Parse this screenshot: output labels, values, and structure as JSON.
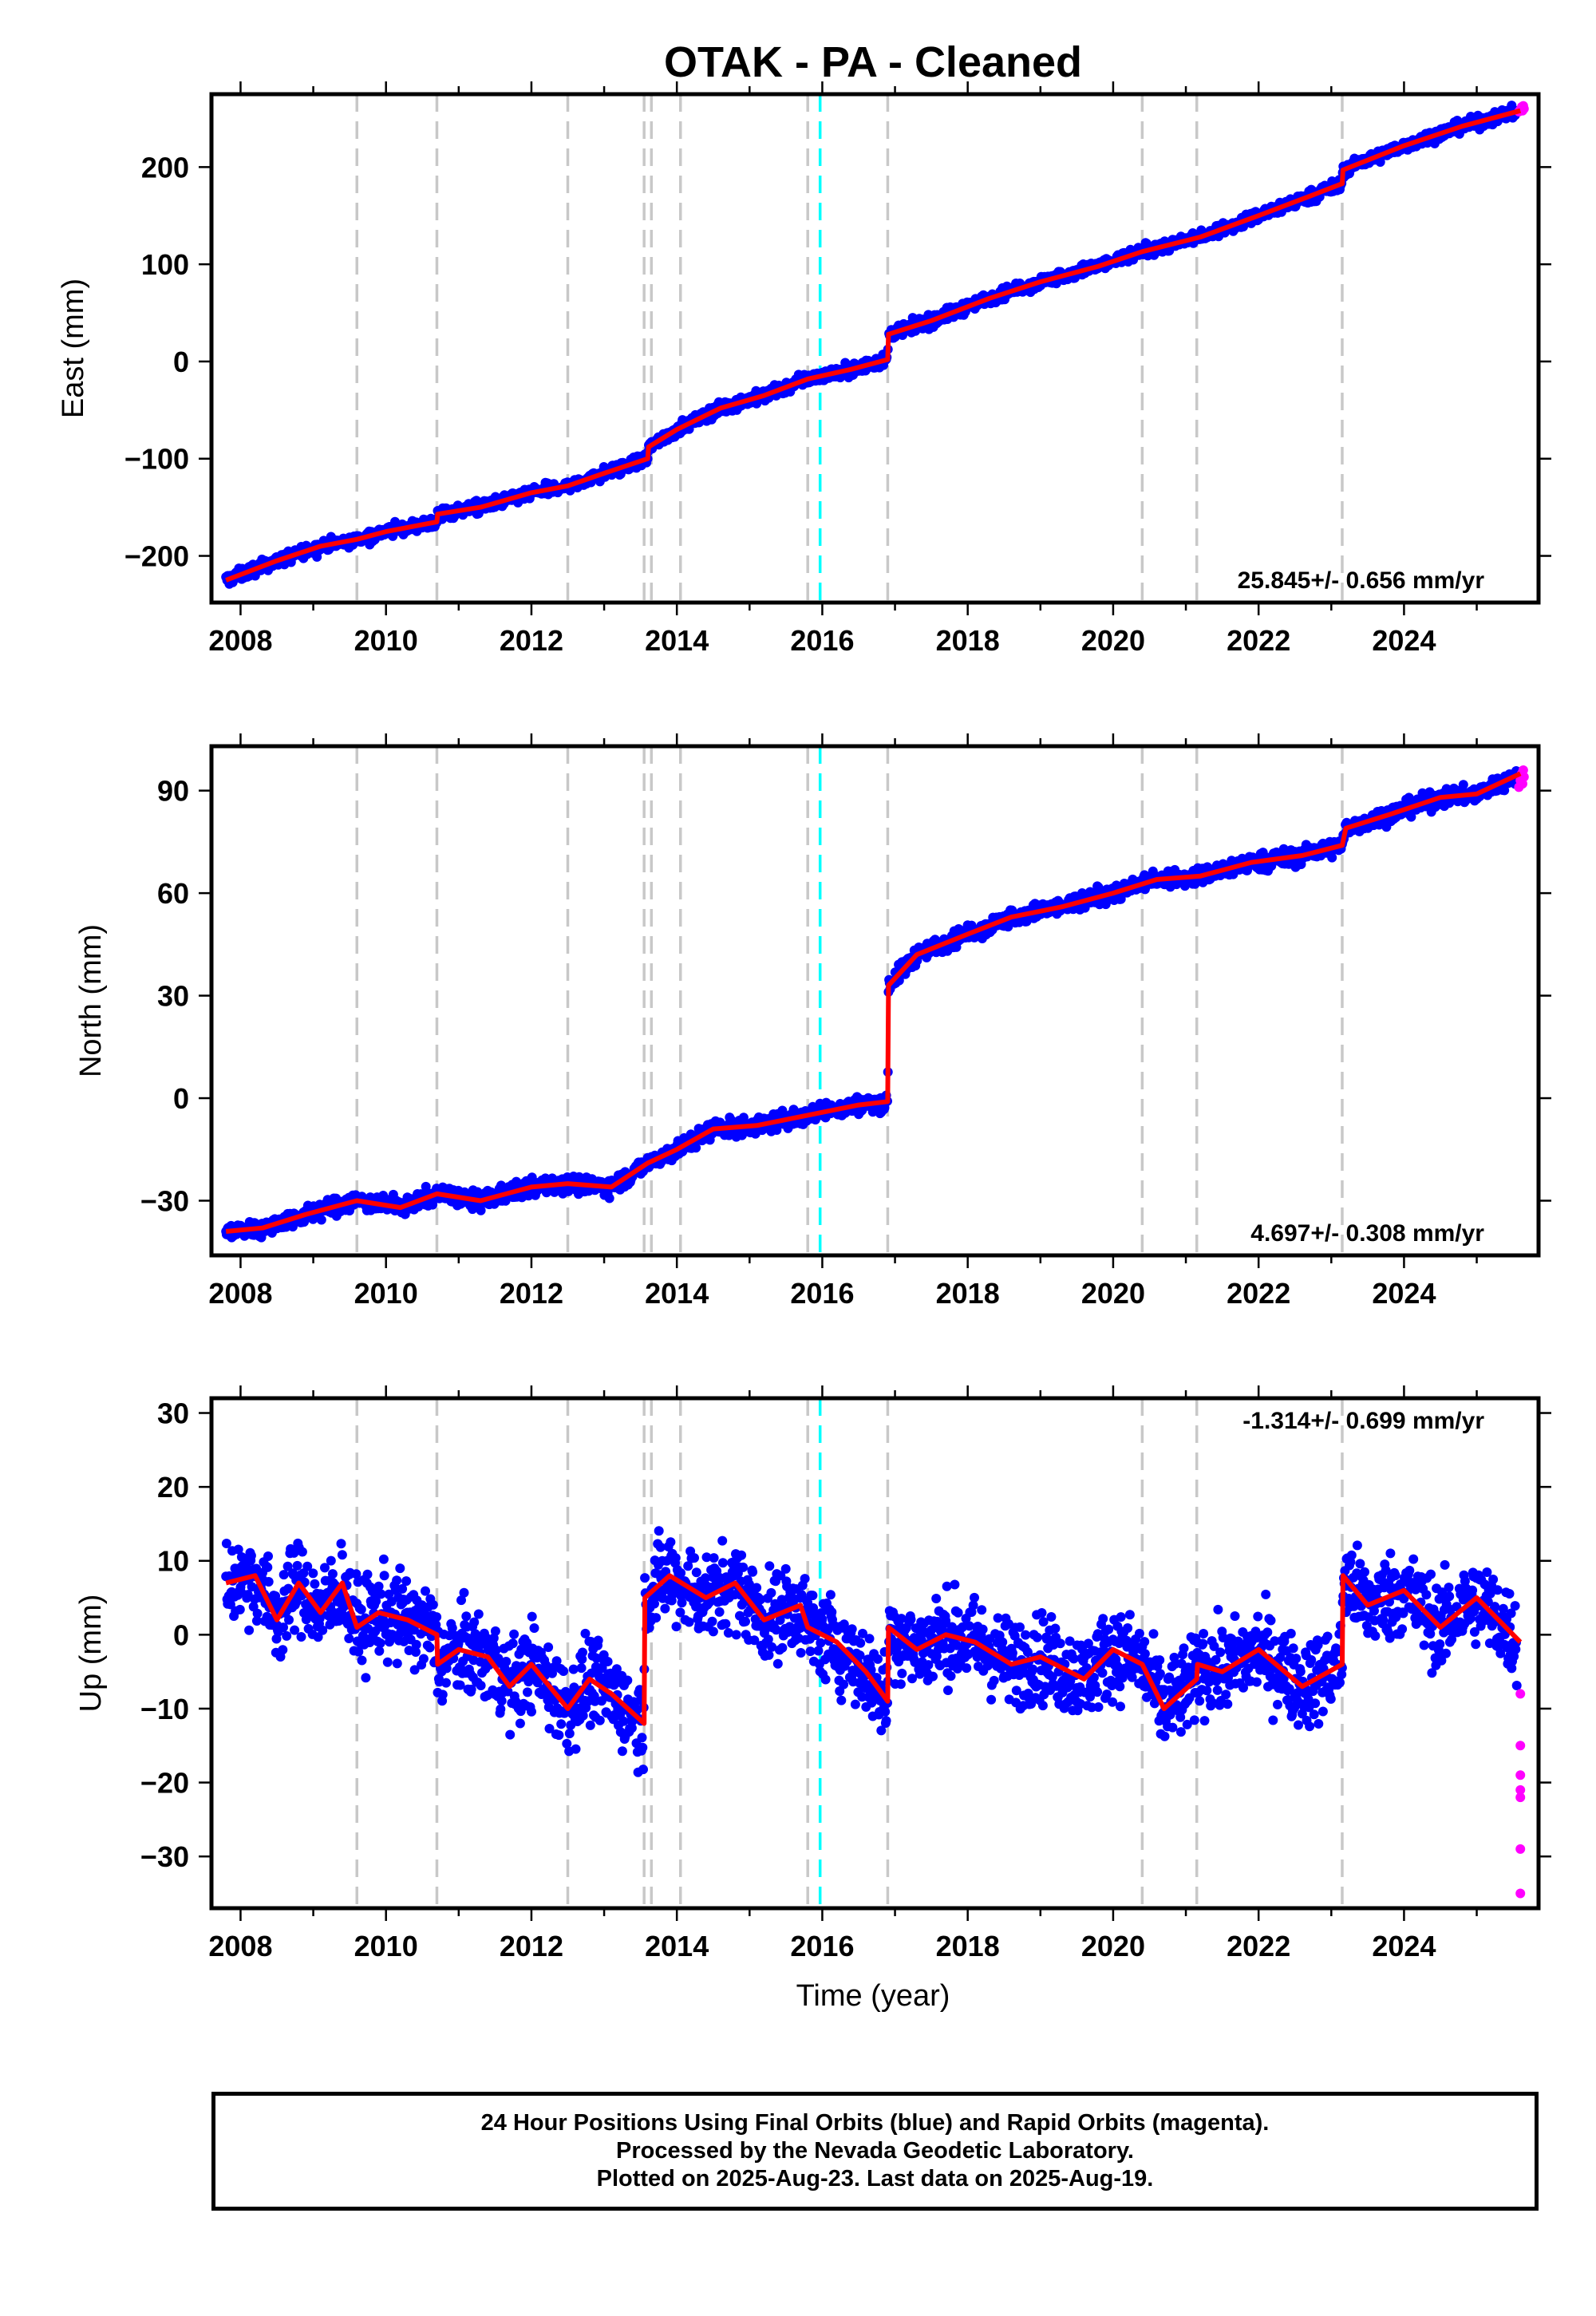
{
  "title": "OTAK  - PA - Cleaned",
  "xlabel": "Time (year)",
  "colors": {
    "final_orbits": "#0000ff",
    "rapid_orbits": "#ff00ff",
    "model": "#ff0000",
    "event_lines": "#c8c8c8",
    "highlight_line": "#00ffff"
  },
  "footer": {
    "line1": "24 Hour Positions Using Final Orbits (blue) and Rapid Orbits (magenta).",
    "line2": "Processed by the Nevada Geodetic Laboratory.",
    "line3": "Plotted on 2025-Aug-23. Last data on 2025-Aug-19."
  },
  "chart_data": [
    {
      "type": "scatter",
      "ylabel": "East (mm)",
      "rate_label": "25.845+/- 0.656 mm/yr",
      "xlim": [
        2007.6,
        2025.85
      ],
      "ylim": [
        -248,
        275
      ],
      "xticks": [
        2008,
        2010,
        2012,
        2014,
        2016,
        2018,
        2020,
        2022,
        2024
      ],
      "yticks": [
        -200,
        -100,
        0,
        100,
        200
      ],
      "event_lines": [
        2009.6,
        2010.7,
        2012.5,
        2013.55,
        2013.65,
        2014.05,
        2015.8,
        2016.9,
        2020.4,
        2021.15,
        2023.15
      ],
      "highlight_lines": [
        2015.97
      ],
      "model": {
        "x": [
          2007.8,
          2008.5,
          2009.1,
          2009.6,
          2010.0,
          2010.7,
          2010.71,
          2011.3,
          2012.0,
          2012.5,
          2013.0,
          2013.6,
          2013.61,
          2014.0,
          2014.6,
          2015.2,
          2015.8,
          2016.4,
          2016.9,
          2016.91,
          2017.5,
          2018.3,
          2019.0,
          2019.8,
          2020.4,
          2021.2,
          2022.0,
          2022.7,
          2023.15,
          2023.16,
          2024.0,
          2024.8,
          2025.6
        ],
        "y": [
          -225,
          -205,
          -190,
          -183,
          -175,
          -165,
          -157,
          -150,
          -135,
          -128,
          -115,
          -100,
          -88,
          -70,
          -48,
          -35,
          -18,
          -8,
          2,
          28,
          42,
          65,
          82,
          98,
          113,
          128,
          150,
          170,
          183,
          197,
          222,
          242,
          258
        ]
      },
      "series": [
        {
          "name": "Final orbits",
          "trend": {
            "start": [
              2007.8,
              -229
            ],
            "end": [
              2025.55,
              254
            ]
          },
          "noise_mm": 4.5
        },
        {
          "name": "Rapid orbits",
          "x": [
            2025.58,
            2025.6,
            2025.62,
            2025.63,
            2025.64,
            2025.65
          ],
          "y": [
            257,
            259,
            262,
            258,
            263,
            260
          ]
        }
      ]
    },
    {
      "type": "scatter",
      "ylabel": "North (mm)",
      "rate_label": "4.697+/- 0.308 mm/yr",
      "xlim": [
        2007.6,
        2025.85
      ],
      "ylim": [
        -46,
        103
      ],
      "xticks": [
        2008,
        2010,
        2012,
        2014,
        2016,
        2018,
        2020,
        2022,
        2024
      ],
      "yticks": [
        -30,
        0,
        30,
        60,
        90
      ],
      "event_lines": [
        2009.6,
        2010.7,
        2012.5,
        2013.55,
        2013.65,
        2014.05,
        2015.8,
        2016.9,
        2020.4,
        2021.15,
        2023.15
      ],
      "highlight_lines": [
        2015.97
      ],
      "model": {
        "x": [
          2007.8,
          2008.3,
          2008.9,
          2009.6,
          2010.2,
          2010.7,
          2011.3,
          2012.0,
          2012.5,
          2013.1,
          2013.6,
          2014.0,
          2014.5,
          2015.1,
          2015.8,
          2016.5,
          2016.9,
          2016.91,
          2017.3,
          2018.0,
          2018.6,
          2019.3,
          2020.0,
          2020.6,
          2021.2,
          2021.9,
          2022.6,
          2023.15,
          2023.2,
          2023.8,
          2024.5,
          2025.0,
          2025.6
        ],
        "y": [
          -39,
          -38,
          -34,
          -30,
          -32,
          -28,
          -30,
          -26,
          -25,
          -26,
          -19,
          -15,
          -9,
          -8,
          -5,
          -2,
          -1,
          33,
          42,
          48,
          53,
          56,
          60,
          64,
          65,
          69,
          71,
          74,
          79,
          83,
          88,
          89,
          95
        ]
      },
      "series": [
        {
          "name": "Final orbits",
          "trend": {
            "start": [
              2007.8,
              -39
            ],
            "end": [
              2025.55,
              93
            ]
          },
          "noise_mm": 1.8
        },
        {
          "name": "Rapid orbits",
          "x": [
            2025.58,
            2025.6,
            2025.62,
            2025.63,
            2025.64,
            2025.65
          ],
          "y": [
            91,
            93,
            95,
            92,
            96,
            94
          ]
        }
      ]
    },
    {
      "type": "scatter",
      "ylabel": "Up (mm)",
      "rate_label": "-1.314+/- 0.699 mm/yr",
      "xlim": [
        2007.6,
        2025.85
      ],
      "ylim": [
        -37,
        32
      ],
      "xticks": [
        2008,
        2010,
        2012,
        2014,
        2016,
        2018,
        2020,
        2022,
        2024
      ],
      "yticks": [
        -30,
        -20,
        -10,
        0,
        10,
        20,
        30
      ],
      "event_lines": [
        2009.6,
        2010.7,
        2012.5,
        2013.55,
        2013.65,
        2014.05,
        2015.8,
        2016.9,
        2020.4,
        2021.15,
        2023.15
      ],
      "highlight_lines": [
        2015.97
      ],
      "model": {
        "x": [
          2007.8,
          2008.2,
          2008.5,
          2008.8,
          2009.1,
          2009.4,
          2009.6,
          2009.9,
          2010.3,
          2010.7,
          2010.71,
          2011.0,
          2011.4,
          2011.7,
          2012.0,
          2012.5,
          2012.8,
          2013.1,
          2013.55,
          2013.56,
          2013.9,
          2014.4,
          2014.8,
          2015.2,
          2015.7,
          2015.8,
          2016.2,
          2016.6,
          2016.9,
          2016.91,
          2017.3,
          2017.7,
          2018.1,
          2018.6,
          2019.0,
          2019.6,
          2020.0,
          2020.4,
          2020.7,
          2021.15,
          2021.16,
          2021.5,
          2022.0,
          2022.6,
          2023.15,
          2023.16,
          2023.5,
          2024.0,
          2024.5,
          2025.0,
          2025.6
        ],
        "y": [
          7,
          8,
          2,
          7,
          3,
          7,
          1,
          3,
          2,
          0,
          -4,
          -2,
          -3,
          -7,
          -4,
          -10,
          -6,
          -8,
          -12,
          5,
          8,
          5,
          7,
          2,
          4,
          1,
          -1,
          -5,
          -9,
          1,
          -2,
          0,
          -1,
          -4,
          -3,
          -6,
          -2,
          -4,
          -10,
          -6,
          -4,
          -5,
          -2,
          -7,
          -4,
          8,
          4,
          6,
          1,
          5,
          -1
        ]
      },
      "series": [
        {
          "name": "Final orbits",
          "trend": {
            "start": [
              2007.8,
              7
            ],
            "end": [
              2025.55,
              0
            ]
          },
          "noise_mm": 4.2
        },
        {
          "name": "Rapid orbits",
          "x": [
            2025.6,
            2025.6,
            2025.6,
            2025.6,
            2025.6,
            2025.6,
            2025.6
          ],
          "y": [
            -8,
            -15,
            -19,
            -21,
            -22,
            -29,
            -35
          ]
        }
      ]
    }
  ]
}
